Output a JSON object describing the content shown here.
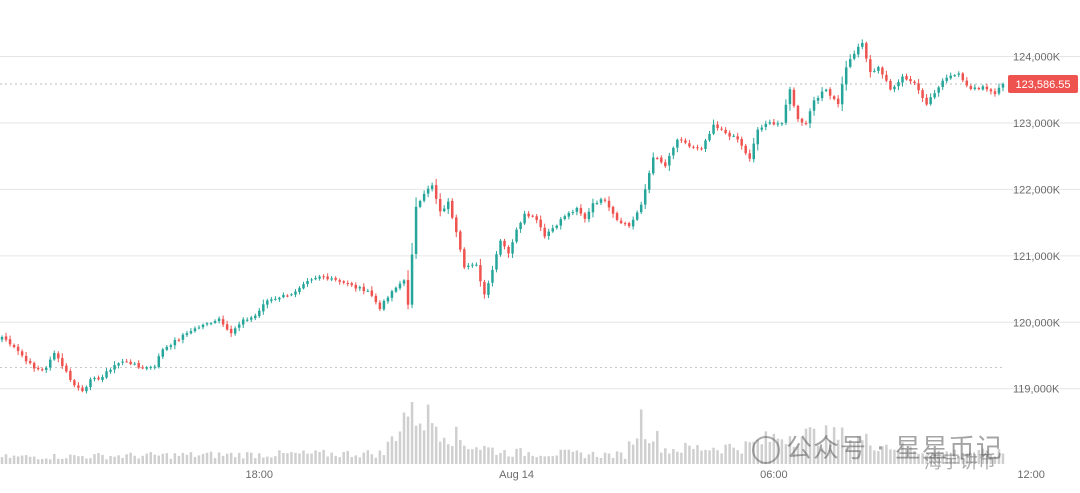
{
  "chart_data": {
    "type": "candlestick",
    "ylim": [
      118800,
      124550
    ],
    "y_ticks": [
      {
        "value": 124000,
        "label": "124,000K"
      },
      {
        "value": 123000,
        "label": "123,000K"
      },
      {
        "value": 122000,
        "label": "122,000K"
      },
      {
        "value": 121000,
        "label": "121,000K"
      },
      {
        "value": 120000,
        "label": "120,000K"
      },
      {
        "value": 119000,
        "label": "119,000K"
      }
    ],
    "x_ticks": [
      {
        "index": 64,
        "label": "18:00"
      },
      {
        "index": 128,
        "label": "Aug 14"
      },
      {
        "index": 192,
        "label": "06:00"
      },
      {
        "index": 256,
        "label": "12:00"
      }
    ],
    "last_price": {
      "value": 123586.55,
      "label": "123,586.55"
    },
    "dotted_low_line": 119320,
    "grid": true,
    "colors": {
      "up": "#26a69a",
      "down": "#ef5350",
      "volume": "#cfcfcf",
      "grid": "#e6e6e6",
      "price_tag": "#ef5350"
    },
    "anchors": [
      [
        0,
        119780
      ],
      [
        3,
        119640
      ],
      [
        5,
        119500
      ],
      [
        8,
        119300
      ],
      [
        11,
        119300
      ],
      [
        13,
        119560
      ],
      [
        16,
        119250
      ],
      [
        18,
        119050
      ],
      [
        20,
        118980
      ],
      [
        22,
        119120
      ],
      [
        25,
        119180
      ],
      [
        28,
        119360
      ],
      [
        31,
        119420
      ],
      [
        34,
        119320
      ],
      [
        36,
        119320
      ],
      [
        38,
        119350
      ],
      [
        40,
        119600
      ],
      [
        44,
        119750
      ],
      [
        47,
        119880
      ],
      [
        50,
        119950
      ],
      [
        54,
        120060
      ],
      [
        57,
        119840
      ],
      [
        60,
        120020
      ],
      [
        63,
        120100
      ],
      [
        66,
        120330
      ],
      [
        70,
        120400
      ],
      [
        73,
        120450
      ],
      [
        76,
        120600
      ],
      [
        79,
        120680
      ],
      [
        82,
        120670
      ],
      [
        85,
        120600
      ],
      [
        88,
        120520
      ],
      [
        91,
        120480
      ],
      [
        94,
        120220
      ],
      [
        97,
        120450
      ],
      [
        100,
        120650
      ],
      [
        101,
        120250
      ],
      [
        102,
        121000
      ],
      [
        103,
        121750
      ],
      [
        105,
        121950
      ],
      [
        107,
        122050
      ],
      [
        109,
        121650
      ],
      [
        111,
        121800
      ],
      [
        113,
        121380
      ],
      [
        115,
        120850
      ],
      [
        118,
        120850
      ],
      [
        120,
        120420
      ],
      [
        122,
        120800
      ],
      [
        124,
        121250
      ],
      [
        126,
        121050
      ],
      [
        128,
        121380
      ],
      [
        130,
        121650
      ],
      [
        133,
        121560
      ],
      [
        135,
        121310
      ],
      [
        137,
        121420
      ],
      [
        140,
        121600
      ],
      [
        143,
        121700
      ],
      [
        145,
        121550
      ],
      [
        147,
        121800
      ],
      [
        150,
        121850
      ],
      [
        153,
        121550
      ],
      [
        156,
        121450
      ],
      [
        159,
        121750
      ],
      [
        162,
        122500
      ],
      [
        165,
        122350
      ],
      [
        168,
        122750
      ],
      [
        171,
        122650
      ],
      [
        174,
        122600
      ],
      [
        177,
        122950
      ],
      [
        180,
        122850
      ],
      [
        183,
        122750
      ],
      [
        186,
        122450
      ],
      [
        188,
        122900
      ],
      [
        191,
        123000
      ],
      [
        194,
        123000
      ],
      [
        196,
        123500
      ],
      [
        198,
        123050
      ],
      [
        200,
        123000
      ],
      [
        202,
        123350
      ],
      [
        205,
        123500
      ],
      [
        208,
        123300
      ],
      [
        210,
        123850
      ],
      [
        212,
        124050
      ],
      [
        214,
        124200
      ],
      [
        216,
        123750
      ],
      [
        218,
        123850
      ],
      [
        221,
        123500
      ],
      [
        224,
        123700
      ],
      [
        227,
        123600
      ],
      [
        230,
        123300
      ],
      [
        232,
        123450
      ],
      [
        235,
        123700
      ],
      [
        238,
        123750
      ],
      [
        241,
        123500
      ],
      [
        244,
        123550
      ],
      [
        247,
        123450
      ],
      [
        249,
        123586.55
      ]
    ],
    "volume_scale": "relative",
    "volume_anchors": [
      [
        0,
        0.12
      ],
      [
        60,
        0.16
      ],
      [
        95,
        0.18
      ],
      [
        101,
        0.95
      ],
      [
        108,
        0.7
      ],
      [
        115,
        0.35
      ],
      [
        125,
        0.2
      ],
      [
        155,
        0.15
      ],
      [
        159,
        0.75
      ],
      [
        165,
        0.25
      ],
      [
        185,
        0.3
      ],
      [
        195,
        0.5
      ],
      [
        210,
        0.45
      ],
      [
        230,
        0.2
      ],
      [
        249,
        0.18
      ]
    ]
  },
  "watermarks": {
    "left_text": "公众号 · 星星币记",
    "right_text": "海宇讲币"
  }
}
